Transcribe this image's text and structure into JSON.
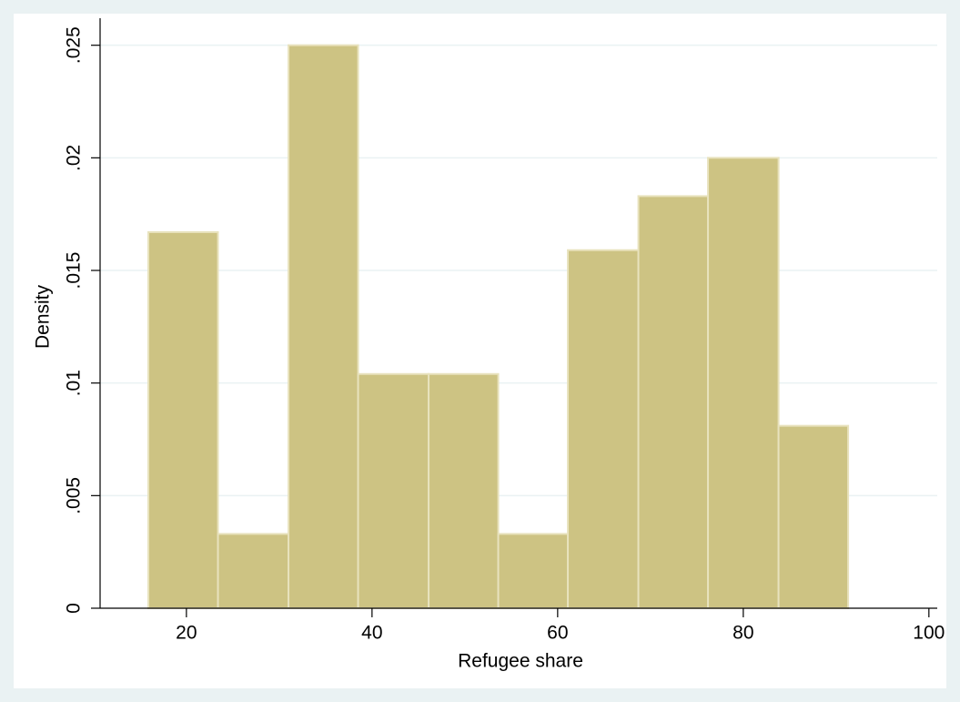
{
  "chart_data": {
    "type": "histogram",
    "xlabel": "Refugee share",
    "ylabel": "Density",
    "bins": [
      15.9,
      23.4,
      31.0,
      38.5,
      46.1,
      53.6,
      61.1,
      68.7,
      76.2,
      83.8,
      91.3
    ],
    "values": [
      0.0167,
      0.0033,
      0.025,
      0.0104,
      0.0104,
      0.0033,
      0.0159,
      0.0183,
      0.02,
      0.0081
    ],
    "color": "#cdc383",
    "xlim": [
      10.7,
      100.9
    ],
    "xticks": [
      20,
      40,
      60,
      80,
      100
    ],
    "ylim": [
      0,
      0.0262
    ],
    "yticks": [
      0,
      {
        "value": 0.005,
        "label": ".005"
      },
      {
        "value": 0.01,
        "label": ".01"
      },
      {
        "value": 0.015,
        "label": ".015"
      },
      {
        "value": 0.02,
        "label": ".02"
      },
      {
        "value": 0.025,
        "label": ".025"
      }
    ],
    "grid": true
  }
}
